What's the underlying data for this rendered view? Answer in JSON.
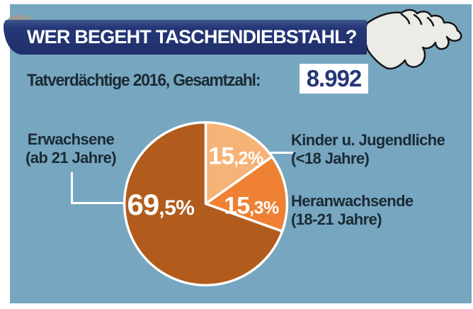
{
  "header": {
    "title": "WER BEGEHT TASCHENDIEBSTAHL?"
  },
  "subtitle": {
    "label": "Tatverdächtige 2016, Gesamtzahl:",
    "total": "8.992"
  },
  "chart_data": {
    "type": "pie",
    "title": "Wer begeht Taschendiebstahl?",
    "subtitle": "Tatverdächtige 2016",
    "total_label": "Gesamtzahl",
    "total": "8.992",
    "start_angle_deg": 0,
    "direction": "clockwise",
    "stroke_color": "#ffffff",
    "slices": [
      {
        "name": "Kinder u. Jugendliche",
        "age_range": "(<18 Jahre)",
        "value": 15.2,
        "label": "15,2%",
        "label_main": "15",
        "label_decimal": ",2%",
        "color": "#f6b378"
      },
      {
        "name": "Heranwachsende",
        "age_range": "(18-21 Jahre)",
        "value": 15.3,
        "label": "15,3%",
        "label_main": "15",
        "label_decimal": ",3%",
        "color": "#ee8133"
      },
      {
        "name": "Erwachsene",
        "age_range": "(ab 21 Jahre)",
        "value": 69.5,
        "label": "69,5%",
        "label_main": "69",
        "label_decimal": ",5%",
        "color": "#b15c1d"
      }
    ]
  },
  "colors": {
    "panel_bg": "#77a6c0",
    "ribbon": "#22346f",
    "total_text": "#263779",
    "text_dark": "#1b2a33",
    "glove_fill": "#ebebe8"
  }
}
